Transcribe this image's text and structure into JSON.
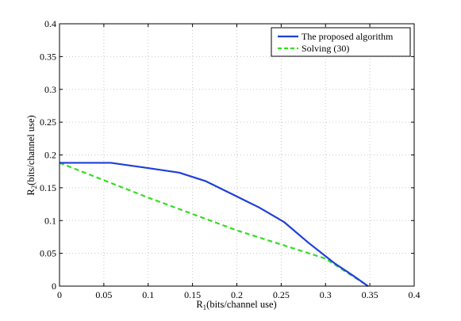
{
  "chart_data": {
    "type": "line",
    "title": "",
    "xlabel": {
      "base": "R",
      "sub": "1",
      "rest": "(bits/channel use)"
    },
    "ylabel": {
      "base": "R",
      "sub": "2",
      "rest": "(bits/channel use)"
    },
    "xlim": [
      0,
      0.4
    ],
    "ylim": [
      0,
      0.4
    ],
    "xticks": [
      "0",
      "0.05",
      "0.1",
      "0.15",
      "0.2",
      "0.25",
      "0.3",
      "0.35",
      "0.4"
    ],
    "yticks": [
      "0",
      "0.05",
      "0.1",
      "0.15",
      "0.2",
      "0.25",
      "0.3",
      "0.35",
      "0.4"
    ],
    "grid": true,
    "legend_position": "top-right",
    "series": [
      {
        "name": "The proposed algorithm",
        "color": "#1f3fd8",
        "style": "solid",
        "x": [
          0,
          0.058,
          0.1,
          0.135,
          0.165,
          0.195,
          0.225,
          0.253,
          0.28,
          0.31,
          0.33,
          0.348
        ],
        "y": [
          0.188,
          0.188,
          0.18,
          0.173,
          0.16,
          0.14,
          0.12,
          0.098,
          0.067,
          0.035,
          0.017,
          0
        ]
      },
      {
        "name": "Solving (30)",
        "color": "#33dd22",
        "style": "dashed",
        "x": [
          0,
          0.1,
          0.2,
          0.3,
          0.348
        ],
        "y": [
          0.188,
          0.135,
          0.085,
          0.042,
          0
        ]
      }
    ]
  }
}
